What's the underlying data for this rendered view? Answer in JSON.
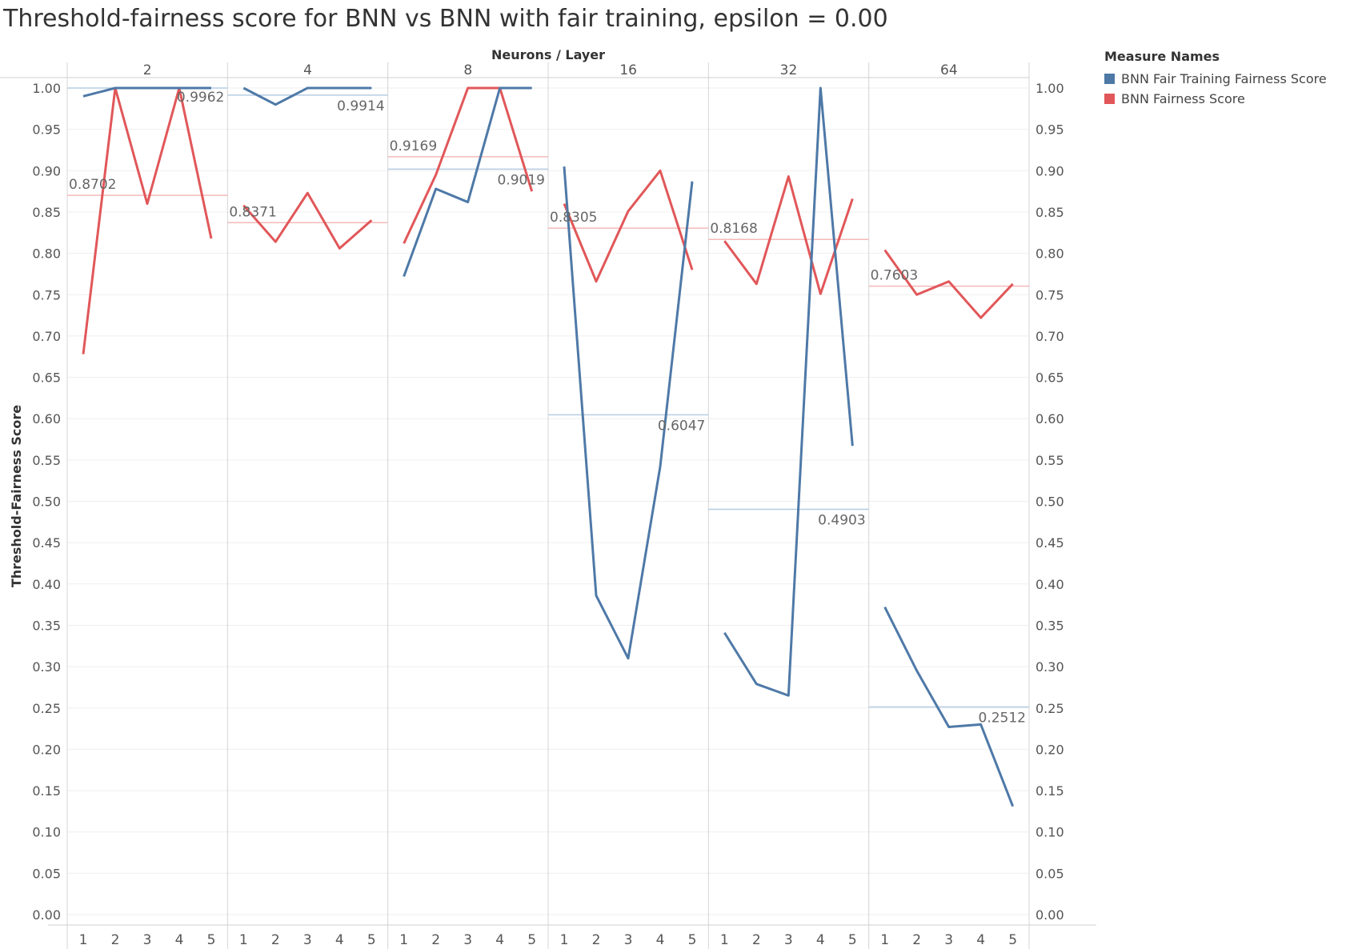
{
  "chart_data": {
    "type": "line",
    "title": "Threshold-fairness score for BNN vs BNN with fair training, epsilon = 0.00",
    "column_header_title": "Neurons / Layer",
    "ylabel": "Threshold-Fairness Score",
    "ylim": [
      0,
      1.0
    ],
    "y_ticks": [
      "1.00",
      "0.95",
      "0.90",
      "0.85",
      "0.80",
      "0.75",
      "0.70",
      "0.65",
      "0.60",
      "0.55",
      "0.50",
      "0.45",
      "0.40",
      "0.35",
      "0.30",
      "0.25",
      "0.20",
      "0.15",
      "0.10",
      "0.05",
      "0.00"
    ],
    "x": [
      "1",
      "2",
      "3",
      "4",
      "5"
    ],
    "legend": {
      "title": "Measure Names",
      "placement": "top-right",
      "items": [
        {
          "name": "BNN Fair Training Fairness Score",
          "color": "#4e79a7"
        },
        {
          "name": "BNN Fairness Score",
          "color": "#e15759"
        }
      ]
    },
    "panels": [
      {
        "label": "2",
        "fair_training": [
          0.99,
          1.0,
          1.0,
          1.0,
          1.0
        ],
        "fairness": [
          0.678,
          1.0,
          0.86,
          1.0,
          0.818
        ],
        "fair_training_ref": {
          "value": 1.0,
          "label": ""
        },
        "fairness_ref": {
          "value": 0.8702,
          "label": "0.8702"
        },
        "extra_label": "0.9962"
      },
      {
        "label": "4",
        "fair_training": [
          1.0,
          0.98,
          1.0,
          1.0,
          1.0
        ],
        "fairness": [
          0.858,
          0.814,
          0.873,
          0.806,
          0.84
        ],
        "fair_training_ref": {
          "value": 0.9914,
          "label": "0.9914"
        },
        "fairness_ref": {
          "value": 0.8371,
          "label": "0.8371"
        }
      },
      {
        "label": "8",
        "fair_training": [
          0.772,
          0.878,
          0.862,
          1.0,
          1.0
        ],
        "fairness": [
          0.812,
          0.895,
          1.0,
          1.0,
          0.875
        ],
        "fair_training_ref": {
          "value": 0.9019,
          "label": "0.9019"
        },
        "fairness_ref": {
          "value": 0.9169,
          "label": "0.9169"
        }
      },
      {
        "label": "16",
        "fair_training": [
          0.905,
          0.386,
          0.31,
          0.542,
          0.887
        ],
        "fairness": [
          0.86,
          0.766,
          0.851,
          0.9,
          0.78
        ],
        "fair_training_ref": {
          "value": 0.6047,
          "label": "0.6047"
        },
        "fairness_ref": {
          "value": 0.8305,
          "label": "0.8305"
        }
      },
      {
        "label": "32",
        "fair_training": [
          0.341,
          0.279,
          0.265,
          1.0,
          0.567
        ],
        "fairness": [
          0.815,
          0.763,
          0.893,
          0.751,
          0.866
        ],
        "fair_training_ref": {
          "value": 0.4903,
          "label": "0.4903"
        },
        "fairness_ref": {
          "value": 0.8168,
          "label": "0.8168"
        }
      },
      {
        "label": "64",
        "fair_training": [
          0.372,
          0.295,
          0.227,
          0.23,
          0.131
        ],
        "fairness": [
          0.804,
          0.75,
          0.766,
          0.722,
          0.763
        ],
        "fair_training_ref": {
          "value": 0.2512,
          "label": "0.2512"
        },
        "fairness_ref": {
          "value": 0.7603,
          "label": "0.7603"
        }
      }
    ]
  }
}
